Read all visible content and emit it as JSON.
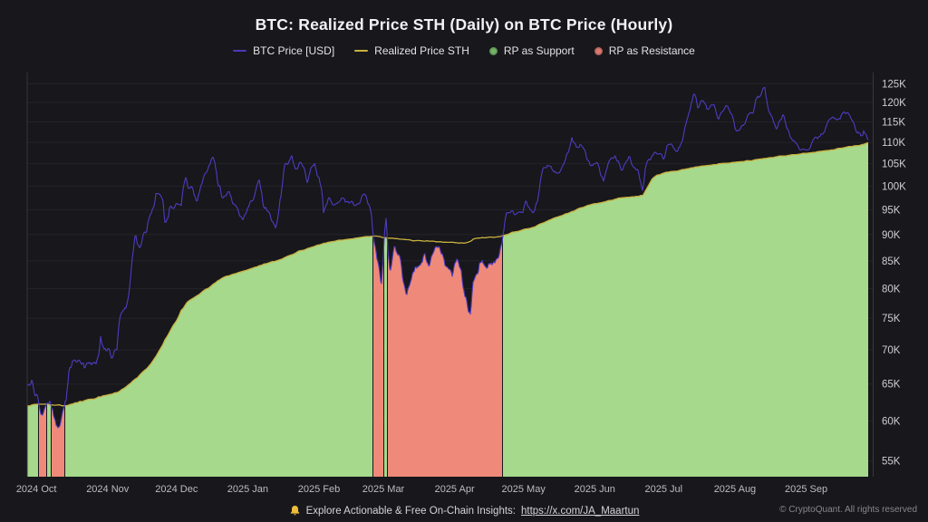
{
  "page": {
    "title": "BTC: Realized Price STH (Daily) on BTC Price (Hourly)",
    "background": "#17171c"
  },
  "legend": {
    "items": [
      {
        "label": "BTC Price [USD]",
        "marker": "line",
        "color": "#4a39b8"
      },
      {
        "label": "Realized Price STH",
        "marker": "line",
        "color": "#c9b13f"
      },
      {
        "label": "RP as Support",
        "marker": "dot",
        "color": "#72b366"
      },
      {
        "label": "RP as Resistance",
        "marker": "dot",
        "color": "#d8796f"
      }
    ]
  },
  "footer": {
    "promo_text": "Explore Actionable & Free On-Chain Insights:",
    "promo_link": "https://x.com/JA_Maartun",
    "copyright": "© CryptoQuant. All rights reserved"
  },
  "chart_data": {
    "type": "line",
    "title": "BTC: Realized Price STH (Daily) on BTC Price (Hourly)",
    "legend_position": "top",
    "grid": "horizontal",
    "colors": {
      "btc_line": "#4e3cc0",
      "rp_line": "#c9b13f",
      "support_fill": "#a6d98b",
      "resistance_fill": "#ef8a7a",
      "gridline": "#232329",
      "axis_border": "#36363e",
      "y_tick_text": "#cdcdd2",
      "x_tick_text": "#bcbcc1"
    },
    "y_axis": {
      "scale": "log",
      "unit": "USD thousands",
      "side": "right",
      "ticks": [
        55,
        60,
        65,
        70,
        75,
        80,
        85,
        90,
        95,
        100,
        105,
        110,
        115,
        120,
        125
      ],
      "tick_labels": [
        "55K",
        "60K",
        "65K",
        "70K",
        "75K",
        "80K",
        "85K",
        "90K",
        "95K",
        "100K",
        "105K",
        "110K",
        "115K",
        "120K",
        "125K"
      ]
    },
    "x_axis": {
      "range": [
        "2024-09-27",
        "2025-09-28"
      ],
      "ticks": [
        {
          "label": "2024 Oct",
          "date": "2024-10-01"
        },
        {
          "label": "2024 Nov",
          "date": "2024-11-01"
        },
        {
          "label": "2024 Dec",
          "date": "2024-12-01"
        },
        {
          "label": "2025 Jan",
          "date": "2025-01-01"
        },
        {
          "label": "2025 Feb",
          "date": "2025-02-01"
        },
        {
          "label": "2025 Mar",
          "date": "2025-03-01"
        },
        {
          "label": "2025 Apr",
          "date": "2025-04-01"
        },
        {
          "label": "2025 May",
          "date": "2025-05-01"
        },
        {
          "label": "2025 Jun",
          "date": "2025-06-01"
        },
        {
          "label": "2025 Jul",
          "date": "2025-07-01"
        },
        {
          "label": "2025 Aug",
          "date": "2025-08-01"
        },
        {
          "label": "2025 Sep",
          "date": "2025-09-01"
        }
      ]
    },
    "series": [
      {
        "name": "BTC Price [USD]",
        "style": "line",
        "color": "#4e3cc0"
      },
      {
        "name": "Realized Price STH",
        "style": "line",
        "color": "#c9b13f"
      }
    ],
    "area_rule": "area under min(btc_price, realized_price); support green when price >= realized price, resistance red when price < realized price",
    "points_format": [
      "date",
      "btc_price_k",
      "realized_price_sth_k"
    ],
    "points": [
      [
        "2024-09-27",
        64.8,
        62.0
      ],
      [
        "2024-09-29",
        65.6,
        62.1
      ],
      [
        "2024-10-01",
        63.6,
        62.2
      ],
      [
        "2024-10-03",
        60.8,
        62.2
      ],
      [
        "2024-10-05",
        62.0,
        62.2
      ],
      [
        "2024-10-07",
        62.8,
        62.1
      ],
      [
        "2024-10-08",
        61.6,
        62.1
      ],
      [
        "2024-10-10",
        59.3,
        62.1
      ],
      [
        "2024-10-12",
        60.5,
        62.0
      ],
      [
        "2024-10-14",
        62.8,
        62.0
      ],
      [
        "2024-10-16",
        67.3,
        62.2
      ],
      [
        "2024-10-18",
        68.4,
        62.4
      ],
      [
        "2024-10-20",
        68.3,
        62.6
      ],
      [
        "2024-10-22",
        67.2,
        62.7
      ],
      [
        "2024-10-25",
        67.8,
        62.9
      ],
      [
        "2024-10-27",
        67.9,
        63.0
      ],
      [
        "2024-10-29",
        72.3,
        63.2
      ],
      [
        "2024-10-31",
        70.2,
        63.4
      ],
      [
        "2024-11-03",
        68.7,
        63.6
      ],
      [
        "2024-11-05",
        69.8,
        63.8
      ],
      [
        "2024-11-07",
        75.9,
        64.2
      ],
      [
        "2024-11-09",
        76.7,
        64.6
      ],
      [
        "2024-11-11",
        82.0,
        65.1
      ],
      [
        "2024-11-13",
        90.0,
        65.7
      ],
      [
        "2024-11-15",
        87.3,
        66.3
      ],
      [
        "2024-11-18",
        90.5,
        67.2
      ],
      [
        "2024-11-20",
        94.2,
        68.0
      ],
      [
        "2024-11-22",
        98.4,
        69.0
      ],
      [
        "2024-11-25",
        97.2,
        70.8
      ],
      [
        "2024-11-26",
        92.3,
        71.6
      ],
      [
        "2024-11-28",
        95.6,
        72.8
      ],
      [
        "2024-12-01",
        96.4,
        74.6
      ],
      [
        "2024-12-03",
        95.7,
        76.3
      ],
      [
        "2024-12-05",
        101.9,
        77.3
      ],
      [
        "2024-12-06",
        99.2,
        77.8
      ],
      [
        "2024-12-08",
        99.6,
        78.3
      ],
      [
        "2024-12-10",
        96.6,
        78.8
      ],
      [
        "2024-12-12",
        100.4,
        79.4
      ],
      [
        "2024-12-15",
        104.4,
        80.1
      ],
      [
        "2024-12-17",
        106.4,
        80.8
      ],
      [
        "2024-12-19",
        100.1,
        81.4
      ],
      [
        "2024-12-21",
        97.2,
        81.9
      ],
      [
        "2024-12-24",
        98.8,
        82.3
      ],
      [
        "2024-12-27",
        95.6,
        82.7
      ],
      [
        "2024-12-30",
        92.9,
        83.1
      ],
      [
        "2025-01-02",
        96.6,
        83.5
      ],
      [
        "2025-01-04",
        98.1,
        83.8
      ],
      [
        "2025-01-06",
        101.4,
        84.1
      ],
      [
        "2025-01-08",
        95.4,
        84.4
      ],
      [
        "2025-01-10",
        94.6,
        84.6
      ],
      [
        "2025-01-13",
        91.2,
        84.9
      ],
      [
        "2025-01-15",
        97.1,
        85.2
      ],
      [
        "2025-01-17",
        104.6,
        85.6
      ],
      [
        "2025-01-20",
        107.1,
        86.1
      ],
      [
        "2025-01-22",
        103.9,
        86.5
      ],
      [
        "2025-01-24",
        105.4,
        86.9
      ],
      [
        "2025-01-27",
        100.6,
        87.3
      ],
      [
        "2025-01-30",
        105.1,
        87.7
      ],
      [
        "2025-02-01",
        101.9,
        88.0
      ],
      [
        "2025-02-03",
        94.1,
        88.3
      ],
      [
        "2025-02-05",
        97.4,
        88.5
      ],
      [
        "2025-02-08",
        96.1,
        88.7
      ],
      [
        "2025-02-11",
        97.6,
        88.9
      ],
      [
        "2025-02-14",
        96.4,
        89.1
      ],
      [
        "2025-02-17",
        95.9,
        89.3
      ],
      [
        "2025-02-20",
        98.2,
        89.5
      ],
      [
        "2025-02-23",
        95.8,
        89.6
      ],
      [
        "2025-02-25",
        88.4,
        89.7
      ],
      [
        "2025-02-27",
        84.2,
        89.6
      ],
      [
        "2025-02-28",
        79.6,
        89.5
      ],
      [
        "2025-03-02",
        94.3,
        89.4
      ],
      [
        "2025-03-04",
        83.2,
        89.3
      ],
      [
        "2025-03-06",
        88.1,
        89.2
      ],
      [
        "2025-03-08",
        86.0,
        89.1
      ],
      [
        "2025-03-11",
        78.9,
        89.0
      ],
      [
        "2025-03-13",
        81.2,
        88.9
      ],
      [
        "2025-03-15",
        83.9,
        88.8
      ],
      [
        "2025-03-17",
        84.1,
        88.8
      ],
      [
        "2025-03-19",
        86.6,
        88.7
      ],
      [
        "2025-03-21",
        84.0,
        88.7
      ],
      [
        "2025-03-24",
        87.7,
        88.6
      ],
      [
        "2025-03-26",
        86.4,
        88.6
      ],
      [
        "2025-03-28",
        83.9,
        88.5
      ],
      [
        "2025-03-31",
        82.1,
        88.5
      ],
      [
        "2025-04-02",
        85.4,
        88.4
      ],
      [
        "2025-04-04",
        83.1,
        88.4
      ],
      [
        "2025-04-06",
        78.4,
        88.4
      ],
      [
        "2025-04-08",
        75.4,
        88.7
      ],
      [
        "2025-04-09",
        81.1,
        89.1
      ],
      [
        "2025-04-11",
        82.6,
        89.3
      ],
      [
        "2025-04-13",
        85.1,
        89.4
      ],
      [
        "2025-04-15",
        83.6,
        89.4
      ],
      [
        "2025-04-17",
        84.6,
        89.5
      ],
      [
        "2025-04-19",
        85.2,
        89.5
      ],
      [
        "2025-04-21",
        87.4,
        89.6
      ],
      [
        "2025-04-23",
        93.4,
        89.9
      ],
      [
        "2025-04-25",
        94.4,
        90.2
      ],
      [
        "2025-04-27",
        93.9,
        90.5
      ],
      [
        "2025-04-30",
        94.4,
        90.8
      ],
      [
        "2025-05-02",
        96.9,
        91.1
      ],
      [
        "2025-05-05",
        94.4,
        91.4
      ],
      [
        "2025-05-07",
        96.6,
        91.8
      ],
      [
        "2025-05-09",
        102.9,
        92.2
      ],
      [
        "2025-05-11",
        104.1,
        92.6
      ],
      [
        "2025-05-13",
        104.4,
        93.0
      ],
      [
        "2025-05-15",
        102.9,
        93.4
      ],
      [
        "2025-05-17",
        103.4,
        93.7
      ],
      [
        "2025-05-19",
        105.6,
        94.1
      ],
      [
        "2025-05-22",
        111.2,
        94.6
      ],
      [
        "2025-05-24",
        108.9,
        95.0
      ],
      [
        "2025-05-26",
        109.4,
        95.4
      ],
      [
        "2025-05-28",
        107.6,
        95.7
      ],
      [
        "2025-05-30",
        104.6,
        96.0
      ],
      [
        "2025-06-02",
        105.4,
        96.3
      ],
      [
        "2025-06-05",
        100.9,
        96.6
      ],
      [
        "2025-06-07",
        105.4,
        96.9
      ],
      [
        "2025-06-10",
        106.8,
        97.2
      ],
      [
        "2025-06-13",
        103.4,
        97.5
      ],
      [
        "2025-06-16",
        106.9,
        97.6
      ],
      [
        "2025-06-18",
        104.1,
        97.7
      ],
      [
        "2025-06-20",
        103.4,
        97.8
      ],
      [
        "2025-06-22",
        98.9,
        98.0
      ],
      [
        "2025-06-24",
        105.6,
        99.8
      ],
      [
        "2025-06-26",
        106.9,
        101.6
      ],
      [
        "2025-06-28",
        107.3,
        102.4
      ],
      [
        "2025-07-01",
        105.9,
        102.9
      ],
      [
        "2025-07-03",
        109.6,
        103.1
      ],
      [
        "2025-07-06",
        108.1,
        103.3
      ],
      [
        "2025-07-08",
        108.9,
        103.5
      ],
      [
        "2025-07-10",
        112.9,
        103.7
      ],
      [
        "2025-07-12",
        117.4,
        103.9
      ],
      [
        "2025-07-14",
        122.4,
        104.1
      ],
      [
        "2025-07-16",
        117.9,
        104.3
      ],
      [
        "2025-07-18",
        120.4,
        104.5
      ],
      [
        "2025-07-20",
        118.1,
        104.6
      ],
      [
        "2025-07-23",
        119.4,
        104.8
      ],
      [
        "2025-07-25",
        115.6,
        105.0
      ],
      [
        "2025-07-28",
        119.2,
        105.1
      ],
      [
        "2025-07-31",
        116.4,
        105.3
      ],
      [
        "2025-08-02",
        112.9,
        105.4
      ],
      [
        "2025-08-05",
        114.4,
        105.5
      ],
      [
        "2025-08-07",
        116.9,
        105.7
      ],
      [
        "2025-08-09",
        117.1,
        105.8
      ],
      [
        "2025-08-11",
        121.7,
        106.0
      ],
      [
        "2025-08-13",
        123.2,
        106.1
      ],
      [
        "2025-08-14",
        124.2,
        106.2
      ],
      [
        "2025-08-16",
        117.4,
        106.4
      ],
      [
        "2025-08-19",
        113.1,
        106.6
      ],
      [
        "2025-08-22",
        116.9,
        106.8
      ],
      [
        "2025-08-24",
        113.2,
        106.9
      ],
      [
        "2025-08-26",
        110.4,
        107.1
      ],
      [
        "2025-08-29",
        108.4,
        107.2
      ],
      [
        "2025-09-01",
        108.2,
        107.4
      ],
      [
        "2025-09-04",
        110.6,
        107.6
      ],
      [
        "2025-09-06",
        110.9,
        107.8
      ],
      [
        "2025-09-09",
        112.4,
        108.0
      ],
      [
        "2025-09-12",
        115.9,
        108.2
      ],
      [
        "2025-09-14",
        115.4,
        108.4
      ],
      [
        "2025-09-16",
        116.2,
        108.6
      ],
      [
        "2025-09-18",
        117.1,
        108.8
      ],
      [
        "2025-09-21",
        115.4,
        109.0
      ],
      [
        "2025-09-23",
        112.4,
        109.2
      ],
      [
        "2025-09-25",
        111.4,
        109.4
      ],
      [
        "2025-09-26",
        112.9,
        109.5
      ],
      [
        "2025-09-28",
        110.6,
        109.9
      ]
    ]
  }
}
